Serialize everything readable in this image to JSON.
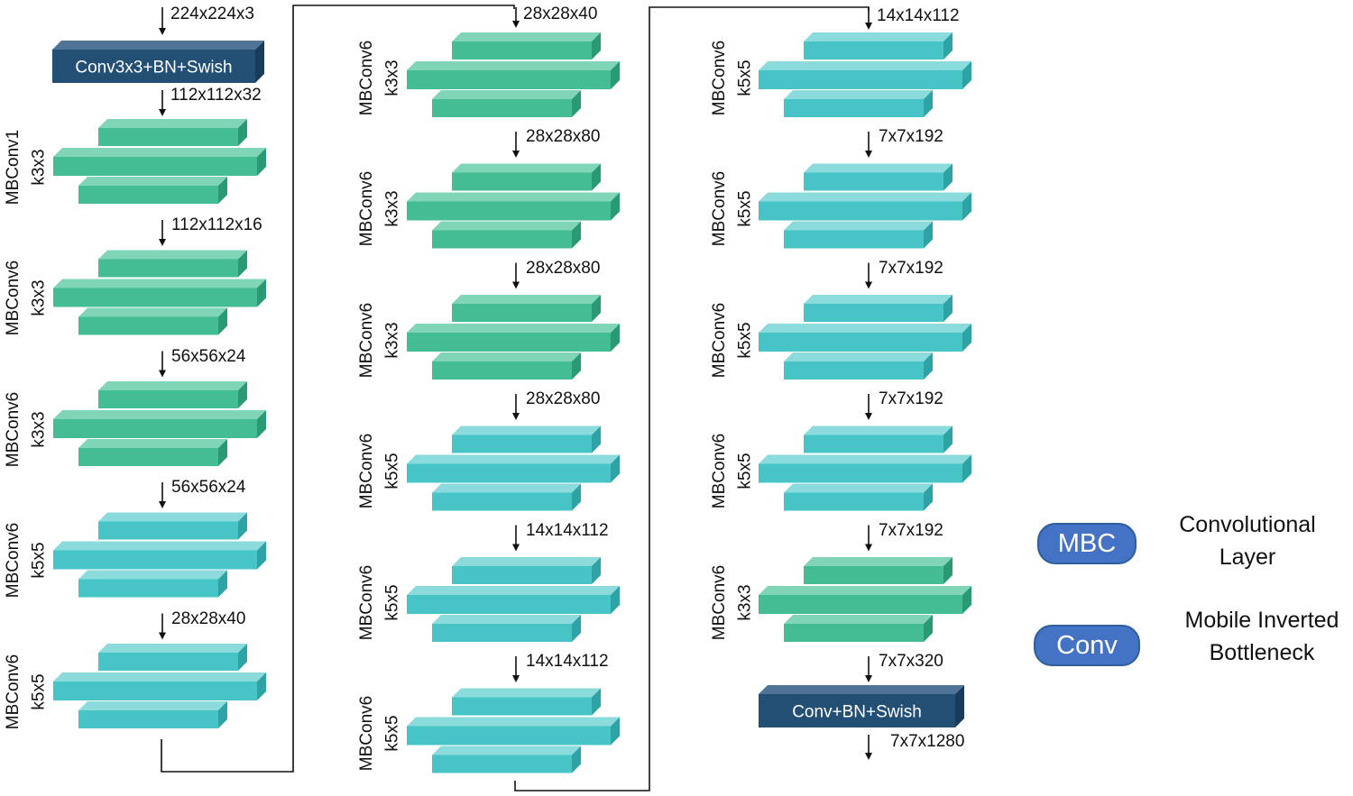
{
  "colors": {
    "green_front": "#44bd94",
    "green_top": "#7fd5b6",
    "green_side": "#2a9a74",
    "teal_front": "#46c4c6",
    "teal_top": "#8bdbdd",
    "teal_side": "#2ea3a5",
    "conv_front": "#234f74",
    "conv_top": "#4f7496",
    "conv_side": "#1a3c5a",
    "pill": "#4472c4",
    "line": "#111111"
  },
  "stem": {
    "label": "Conv3x3+BN+Swish"
  },
  "head": {
    "label": "Conv+BN+Swish"
  },
  "columns": [
    {
      "input_dim": "224x224x3",
      "stem_out": "112x112x32",
      "blocks": [
        {
          "name": "MBConv1",
          "kernel": "k3x3",
          "color": "green",
          "out": "112x112x16"
        },
        {
          "name": "MBConv6",
          "kernel": "k3x3",
          "color": "green",
          "out": "56x56x24"
        },
        {
          "name": "MBConv6",
          "kernel": "k3x3",
          "color": "green",
          "out": "56x56x24"
        },
        {
          "name": "MBConv6",
          "kernel": "k5x5",
          "color": "teal",
          "out": "28x28x40"
        },
        {
          "name": "MBConv6",
          "kernel": "k5x5",
          "color": "teal",
          "out": ""
        }
      ]
    },
    {
      "input_dim": "28x28x40",
      "blocks": [
        {
          "name": "MBConv6",
          "kernel": "k3x3",
          "color": "green",
          "out": "28x28x80"
        },
        {
          "name": "MBConv6",
          "kernel": "k3x3",
          "color": "green",
          "out": "28x28x80"
        },
        {
          "name": "MBConv6",
          "kernel": "k3x3",
          "color": "green",
          "out": "28x28x80"
        },
        {
          "name": "MBConv6",
          "kernel": "k5x5",
          "color": "teal",
          "out": "14x14x112"
        },
        {
          "name": "MBConv6",
          "kernel": "k5x5",
          "color": "teal",
          "out": "14x14x112"
        },
        {
          "name": "MBConv6",
          "kernel": "k5x5",
          "color": "teal",
          "out": ""
        }
      ]
    },
    {
      "input_dim": "14x14x112",
      "blocks": [
        {
          "name": "MBConv6",
          "kernel": "k5x5",
          "color": "teal",
          "out": "7x7x192"
        },
        {
          "name": "MBConv6",
          "kernel": "k5x5",
          "color": "teal",
          "out": "7x7x192"
        },
        {
          "name": "MBConv6",
          "kernel": "k5x5",
          "color": "teal",
          "out": "7x7x192"
        },
        {
          "name": "MBConv6",
          "kernel": "k5x5",
          "color": "teal",
          "out": "7x7x192"
        },
        {
          "name": "MBConv6",
          "kernel": "k3x3",
          "color": "green",
          "out": "7x7x320"
        }
      ],
      "head_out": "7x7x1280"
    }
  ],
  "legend": [
    {
      "pill": "MBC",
      "text_line1": "Convolutional",
      "text_line2": "Layer"
    },
    {
      "pill": "Conv",
      "text_line1": "Mobile Inverted",
      "text_line2": "Bottleneck"
    }
  ]
}
